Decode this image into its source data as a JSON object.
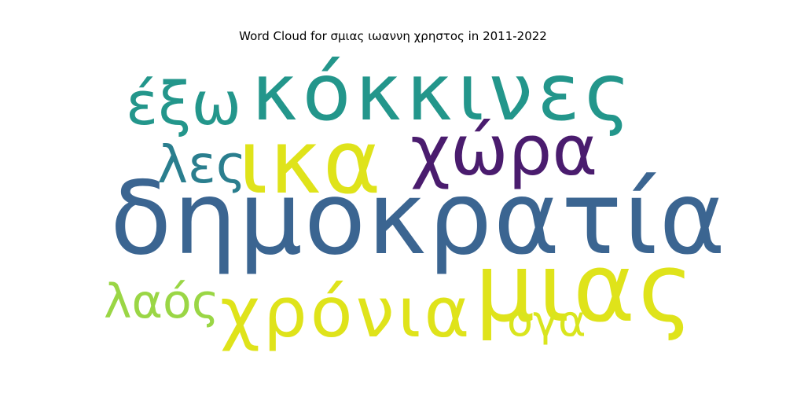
{
  "chart_data": {
    "type": "wordcloud",
    "title": "Word Cloud for σμιας ιωαννη χρηστος in 2011-2022",
    "words": [
      {
        "text": "δημοκρατία",
        "color": "#3b6591"
      },
      {
        "text": "κόκκινες",
        "color": "#23968b"
      },
      {
        "text": "ικα",
        "color": "#dfe31a"
      },
      {
        "text": "χώρα",
        "color": "#4a1c6e"
      },
      {
        "text": "μιας",
        "color": "#dfe31a"
      },
      {
        "text": "χρόνια",
        "color": "#dfe31a"
      },
      {
        "text": "έξω",
        "color": "#23968b"
      },
      {
        "text": "λες",
        "color": "#2a7e8e"
      },
      {
        "text": "λαός",
        "color": "#9ad645"
      },
      {
        "text": "ογα",
        "color": "#d9e51d"
      }
    ]
  }
}
